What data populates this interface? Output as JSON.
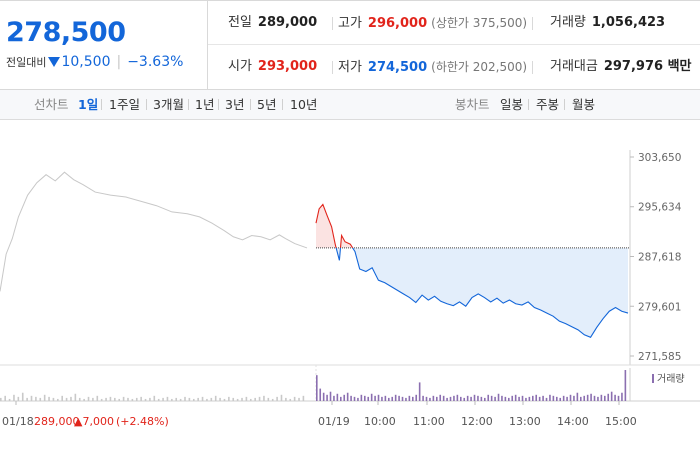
{
  "summary": {
    "price": "278,500",
    "change_label": "전일대비",
    "change_value": "10,500",
    "change_pct": "−3.63%",
    "prev_label": "전일",
    "prev_value": "289,000",
    "high_label": "고가",
    "high_value": "296,000",
    "upper_limit": "(상한가 375,500)",
    "volume_label": "거래량",
    "volume_value": "1,056,423",
    "open_label": "시가",
    "open_value": "293,000",
    "low_label": "저가",
    "low_value": "274,500",
    "lower_limit": "(하한가 202,500)",
    "amount_label": "거래대금",
    "amount_value": "297,976 백만"
  },
  "tabs": {
    "line_label": "선차트",
    "line": [
      "1일",
      "1주일",
      "3개월",
      "1년",
      "3년",
      "5년",
      "10년"
    ],
    "active_line": "1일",
    "candle_label": "봉차트",
    "candle": [
      "일봉",
      "주봉",
      "월봉"
    ]
  },
  "colors": {
    "up": "#e1241b",
    "down": "#1366d9",
    "prev_day": "#c8c8c8",
    "fill": "#e3eefb",
    "volume": "#8b6fb0"
  },
  "chart_data": {
    "type": "line",
    "y_ticks": [
      "303,650",
      "295,634",
      "287,618",
      "279,601",
      "271,585"
    ],
    "y_tick_values": [
      303650,
      295634,
      287618,
      279601,
      271585
    ],
    "ylim": [
      271585,
      303650
    ],
    "x_ticks": [
      "01/18",
      "01/19",
      "10:00",
      "11:00",
      "12:00",
      "13:00",
      "14:00",
      "15:00"
    ],
    "base_price": 289000,
    "prev_day_note": {
      "date": "01/18",
      "close": "289,000",
      "change": "▲7,000",
      "pct": "(+2.48%)"
    },
    "prev_day_series": [
      [
        0,
        282000
      ],
      [
        0.02,
        288000
      ],
      [
        0.04,
        290500
      ],
      [
        0.06,
        294000
      ],
      [
        0.09,
        297500
      ],
      [
        0.12,
        299500
      ],
      [
        0.15,
        300800
      ],
      [
        0.18,
        299800
      ],
      [
        0.21,
        301200
      ],
      [
        0.24,
        300000
      ],
      [
        0.27,
        299200
      ],
      [
        0.31,
        298000
      ],
      [
        0.36,
        297500
      ],
      [
        0.41,
        297200
      ],
      [
        0.46,
        296500
      ],
      [
        0.51,
        295800
      ],
      [
        0.56,
        294800
      ],
      [
        0.61,
        294500
      ],
      [
        0.65,
        294000
      ],
      [
        0.69,
        293000
      ],
      [
        0.73,
        291800
      ],
      [
        0.76,
        290800
      ],
      [
        0.79,
        290300
      ],
      [
        0.82,
        291000
      ],
      [
        0.85,
        290800
      ],
      [
        0.88,
        290300
      ],
      [
        0.91,
        291100
      ],
      [
        0.93,
        290500
      ],
      [
        0.96,
        289700
      ],
      [
        1.0,
        289000
      ]
    ],
    "today_series": [
      [
        0,
        293000
      ],
      [
        0.01,
        295300
      ],
      [
        0.022,
        296000
      ],
      [
        0.035,
        294300
      ],
      [
        0.05,
        292400
      ],
      [
        0.062,
        289500
      ],
      [
        0.075,
        287000
      ],
      [
        0.082,
        291000
      ],
      [
        0.093,
        290000
      ],
      [
        0.11,
        289600
      ],
      [
        0.125,
        288400
      ],
      [
        0.14,
        285600
      ],
      [
        0.16,
        285200
      ],
      [
        0.18,
        285800
      ],
      [
        0.2,
        283800
      ],
      [
        0.22,
        283400
      ],
      [
        0.24,
        282800
      ],
      [
        0.26,
        282200
      ],
      [
        0.28,
        281600
      ],
      [
        0.3,
        281000
      ],
      [
        0.32,
        280200
      ],
      [
        0.34,
        281400
      ],
      [
        0.36,
        280600
      ],
      [
        0.38,
        281200
      ],
      [
        0.4,
        280400
      ],
      [
        0.42,
        280000
      ],
      [
        0.44,
        279700
      ],
      [
        0.46,
        280300
      ],
      [
        0.48,
        279600
      ],
      [
        0.5,
        281000
      ],
      [
        0.52,
        281600
      ],
      [
        0.54,
        281000
      ],
      [
        0.56,
        280300
      ],
      [
        0.58,
        280900
      ],
      [
        0.6,
        280100
      ],
      [
        0.62,
        280600
      ],
      [
        0.64,
        280000
      ],
      [
        0.66,
        279800
      ],
      [
        0.68,
        280300
      ],
      [
        0.7,
        279400
      ],
      [
        0.72,
        279000
      ],
      [
        0.74,
        278500
      ],
      [
        0.76,
        278000
      ],
      [
        0.78,
        277200
      ],
      [
        0.8,
        276800
      ],
      [
        0.82,
        276300
      ],
      [
        0.84,
        275800
      ],
      [
        0.86,
        275000
      ],
      [
        0.88,
        274600
      ],
      [
        0.9,
        276200
      ],
      [
        0.92,
        277600
      ],
      [
        0.94,
        278800
      ],
      [
        0.96,
        279400
      ],
      [
        0.98,
        278800
      ],
      [
        1.0,
        278500
      ]
    ],
    "volume_label": "거래량",
    "prev_day_volume": [
      3,
      5,
      2,
      6,
      4,
      8,
      3,
      5,
      4,
      3,
      6,
      4,
      3,
      2,
      5,
      3,
      4,
      7,
      3,
      2,
      4,
      3,
      5,
      2,
      3,
      4,
      3,
      2,
      4,
      3,
      2,
      3,
      4,
      2,
      3,
      5,
      2,
      3,
      4,
      2,
      3,
      2,
      4,
      3,
      2,
      3,
      4,
      2,
      3,
      5,
      3,
      2,
      4,
      3,
      2,
      3,
      4,
      2,
      3,
      4,
      5,
      3,
      2,
      4,
      6,
      3,
      2,
      4,
      3,
      5
    ],
    "today_volume": [
      25,
      12,
      8,
      6,
      9,
      5,
      7,
      4,
      6,
      8,
      5,
      4,
      3,
      6,
      5,
      4,
      7,
      5,
      6,
      4,
      5,
      3,
      4,
      6,
      5,
      4,
      3,
      5,
      4,
      6,
      18,
      5,
      4,
      3,
      5,
      4,
      6,
      5,
      3,
      4,
      5,
      6,
      4,
      3,
      5,
      4,
      6,
      5,
      4,
      3,
      6,
      5,
      4,
      7,
      5,
      4,
      3,
      5,
      6,
      4,
      5,
      3,
      4,
      5,
      6,
      4,
      5,
      3,
      6,
      5,
      4,
      3,
      5,
      4,
      6,
      5,
      8,
      4,
      5,
      6,
      7,
      5,
      4,
      6,
      5,
      7,
      9,
      6,
      5,
      8,
      30
    ]
  }
}
